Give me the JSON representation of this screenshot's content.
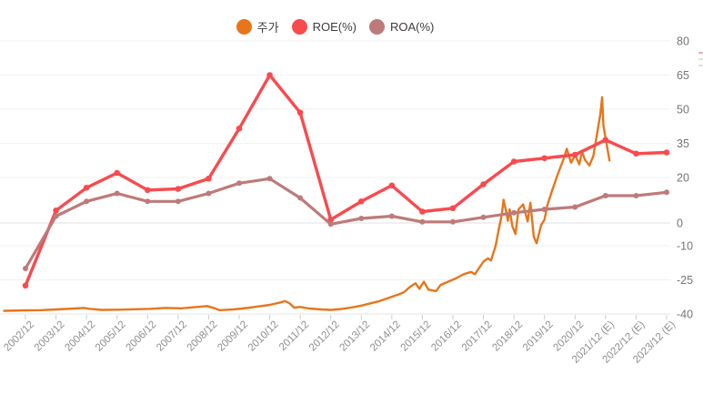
{
  "legend": {
    "items": [
      {
        "key": "price",
        "label": "주가"
      },
      {
        "key": "roe",
        "label": "ROE(%)"
      },
      {
        "key": "roa",
        "label": "ROA(%)"
      }
    ]
  },
  "chart_data": {
    "type": "line",
    "title": "",
    "xlabel": "",
    "ylabel": "",
    "legend_position": "top-center",
    "grid": true,
    "categories": [
      "2002/12",
      "2003/12",
      "2004/12",
      "2005/12",
      "2006/12",
      "2007/12",
      "2008/12",
      "2009/12",
      "2010/12",
      "2011/12",
      "2012/12",
      "2013/12",
      "2014/12",
      "2015/12",
      "2016/12",
      "2017/12",
      "2018/12",
      "2019/12",
      "2020/12",
      "2021/12 (E)",
      "2022/12 (E)",
      "2023/12 (E)"
    ],
    "y_axis": {
      "tick_labels": [
        "80",
        "65",
        "50",
        "35",
        "20",
        "0",
        "-10",
        "-25",
        "-40"
      ],
      "tick_values": [
        80,
        65,
        50,
        35,
        20,
        0,
        -10,
        -25,
        -40
      ],
      "ylim": [
        -40,
        80
      ],
      "side": "right"
    },
    "series": [
      {
        "name": "주가",
        "color": "#E8751B",
        "kind": "dense-line-no-markers",
        "note": "stock price; its own scale is not labeled in the image — values below are read against the visible right-hand % axis. x is in year-tick units (0 = 2002/12 tick).",
        "points": [
          [
            -0.7,
            -38.6
          ],
          [
            0,
            -38.4
          ],
          [
            0.5,
            -38.3
          ],
          [
            1.0,
            -38.0
          ],
          [
            1.6,
            -37.6
          ],
          [
            1.9,
            -37.3
          ],
          [
            2.1,
            -37.7
          ],
          [
            2.5,
            -38.2
          ],
          [
            3.0,
            -38.1
          ],
          [
            3.6,
            -37.9
          ],
          [
            4.1,
            -37.7
          ],
          [
            4.6,
            -37.3
          ],
          [
            5.1,
            -37.5
          ],
          [
            5.6,
            -36.9
          ],
          [
            5.95,
            -36.5
          ],
          [
            6.2,
            -37.5
          ],
          [
            6.35,
            -38.3
          ],
          [
            6.8,
            -38.0
          ],
          [
            7.1,
            -37.6
          ],
          [
            7.5,
            -36.9
          ],
          [
            8.0,
            -36.0
          ],
          [
            8.35,
            -34.9
          ],
          [
            8.5,
            -34.3
          ],
          [
            8.65,
            -35.3
          ],
          [
            8.8,
            -37.2
          ],
          [
            9.0,
            -36.9
          ],
          [
            9.3,
            -37.6
          ],
          [
            9.7,
            -38.0
          ],
          [
            10.0,
            -38.2
          ],
          [
            10.35,
            -37.8
          ],
          [
            10.65,
            -37.2
          ],
          [
            11.0,
            -36.3
          ],
          [
            11.3,
            -35.3
          ],
          [
            11.6,
            -34.3
          ],
          [
            11.9,
            -32.9
          ],
          [
            12.2,
            -31.5
          ],
          [
            12.4,
            -30.4
          ],
          [
            12.6,
            -28.0
          ],
          [
            12.78,
            -26.5
          ],
          [
            12.9,
            -28.9
          ],
          [
            13.05,
            -25.8
          ],
          [
            13.2,
            -29.3
          ],
          [
            13.45,
            -29.9
          ],
          [
            13.6,
            -27.2
          ],
          [
            13.95,
            -25.2
          ],
          [
            14.1,
            -24.3
          ],
          [
            14.35,
            -22.5
          ],
          [
            14.6,
            -21.5
          ],
          [
            14.72,
            -22.5
          ],
          [
            15.0,
            -17.0
          ],
          [
            15.15,
            -15.5
          ],
          [
            15.25,
            -16.5
          ],
          [
            15.4,
            -10.0
          ],
          [
            15.5,
            -3.0
          ],
          [
            15.6,
            3.5
          ],
          [
            15.66,
            10.2
          ],
          [
            15.76,
            4.0
          ],
          [
            15.8,
            1.0
          ],
          [
            15.86,
            6.0
          ],
          [
            15.95,
            -1.5
          ],
          [
            16.05,
            -4.8
          ],
          [
            16.15,
            6.0
          ],
          [
            16.3,
            8.2
          ],
          [
            16.45,
            0.7
          ],
          [
            16.54,
            8.9
          ],
          [
            16.65,
            -6.0
          ],
          [
            16.74,
            -8.9
          ],
          [
            16.89,
            -1.0
          ],
          [
            17.0,
            1.5
          ],
          [
            17.1,
            8.0
          ],
          [
            17.25,
            14.3
          ],
          [
            17.43,
            21.2
          ],
          [
            17.64,
            28.6
          ],
          [
            17.73,
            32.6
          ],
          [
            17.87,
            26.5
          ],
          [
            18.0,
            29.9
          ],
          [
            18.14,
            25.8
          ],
          [
            18.23,
            31.4
          ],
          [
            18.32,
            27.9
          ],
          [
            18.47,
            25.3
          ],
          [
            18.6,
            29.4
          ],
          [
            18.83,
            47.8
          ],
          [
            18.89,
            55.3
          ],
          [
            18.93,
            42.9
          ],
          [
            18.98,
            38.8
          ],
          [
            19.07,
            32.0
          ],
          [
            19.13,
            27.5
          ]
        ]
      },
      {
        "name": "ROE(%)",
        "color": "#F94A4E",
        "kind": "line-with-markers",
        "values": [
          -27.5,
          5.5,
          15.5,
          22,
          14.5,
          15,
          19.5,
          41.5,
          65,
          48.5,
          1.5,
          9.5,
          16.5,
          5,
          6.5,
          17,
          27,
          28.5,
          30,
          36.5,
          30.5,
          31
        ]
      },
      {
        "name": "ROA(%)",
        "color": "#BE7A7A",
        "kind": "line-with-markers",
        "values": [
          -20,
          3,
          9.5,
          13,
          9.5,
          9.5,
          13,
          17.5,
          19.5,
          11,
          -0.5,
          2,
          3,
          0.5,
          0.5,
          2.5,
          4.5,
          6,
          7,
          12,
          12,
          13.5
        ]
      }
    ]
  },
  "colors": {
    "background": "#ffffff",
    "grid": "#f2f2f2",
    "zero_line": "#e2e2e2",
    "axis_line": "#e6e6e6",
    "tick": "#cccccc",
    "y_label": "#757575",
    "x_label": "#8f8f8f",
    "legend_text": "#3c3c3c",
    "artifact_pink": "#f1a6a6",
    "artifact_gray": "#dddddd"
  }
}
